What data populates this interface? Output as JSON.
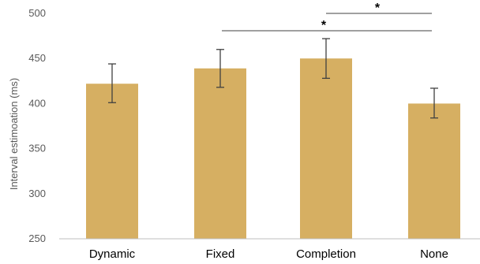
{
  "chart_data": {
    "type": "bar",
    "title": "",
    "xlabel": "",
    "ylabel": "Interval estimoation (ms)",
    "ylim": [
      250,
      500
    ],
    "yticks": [
      250,
      300,
      350,
      400,
      450,
      500
    ],
    "categories": [
      "Dynamic",
      "Fixed",
      "Completion",
      "None"
    ],
    "values": [
      422,
      439,
      450,
      400
    ],
    "error_low": [
      401,
      418,
      428,
      384
    ],
    "error_high": [
      444,
      460,
      472,
      417
    ],
    "significance": [
      {
        "from": "Completion",
        "to": "None",
        "label": "*"
      },
      {
        "from": "Fixed",
        "to": "None",
        "label": "*"
      }
    ],
    "colors": {
      "bar": "#D6AF62",
      "error": "#404040",
      "axis": "#BFBFBF"
    },
    "grid": false
  }
}
